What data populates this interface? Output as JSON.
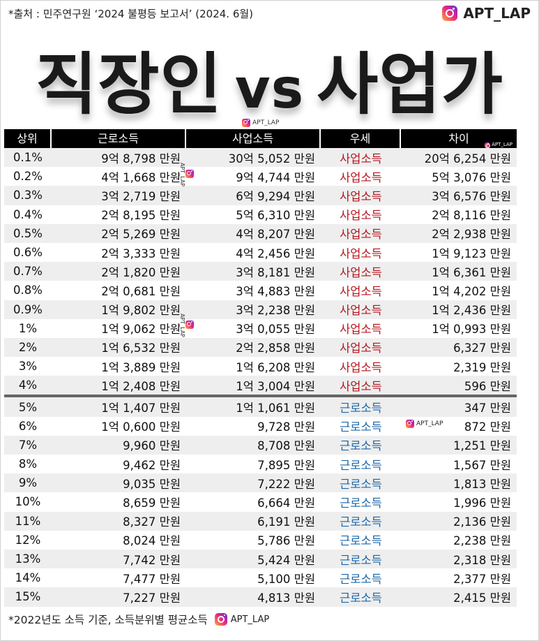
{
  "source_note": "*출처 : 민주연구원 ‘2024 불평등 보고서’ (2024. 6월)",
  "brand": "APT_LAP",
  "headline": {
    "left": "직장인",
    "vs": "vs",
    "right": "사업가"
  },
  "columns": [
    "상위",
    "근로소득",
    "사업소득",
    "우세",
    "차이"
  ],
  "rows_top": [
    {
      "rank": "0.1%",
      "wage": "9억 8,798 만원",
      "biz": "30억 5,052 만원",
      "adv": "사업소득",
      "diff": "20억 6,254 만원"
    },
    {
      "rank": "0.2%",
      "wage": "4억 1,668 만원",
      "biz": "9억 4,744 만원",
      "adv": "사업소득",
      "diff": "5억 3,076 만원"
    },
    {
      "rank": "0.3%",
      "wage": "3억 2,719 만원",
      "biz": "6억 9,294 만원",
      "adv": "사업소득",
      "diff": "3억 6,576 만원"
    },
    {
      "rank": "0.4%",
      "wage": "2억 8,195 만원",
      "biz": "5억 6,310 만원",
      "adv": "사업소득",
      "diff": "2억 8,116 만원"
    },
    {
      "rank": "0.5%",
      "wage": "2억 5,269 만원",
      "biz": "4억 8,207 만원",
      "adv": "사업소득",
      "diff": "2억 2,938 만원"
    },
    {
      "rank": "0.6%",
      "wage": "2억 3,333 만원",
      "biz": "4억 2,456 만원",
      "adv": "사업소득",
      "diff": "1억 9,123 만원"
    },
    {
      "rank": "0.7%",
      "wage": "2억 1,820 만원",
      "biz": "3억 8,181 만원",
      "adv": "사업소득",
      "diff": "1억 6,361 만원"
    },
    {
      "rank": "0.8%",
      "wage": "2억 0,681 만원",
      "biz": "3억 4,883 만원",
      "adv": "사업소득",
      "diff": "1억 4,202 만원"
    },
    {
      "rank": "0.9%",
      "wage": "1억 9,802 만원",
      "biz": "3억 2,238 만원",
      "adv": "사업소득",
      "diff": "1억 2,436 만원"
    },
    {
      "rank": "1%",
      "wage": "1억 9,062 만원",
      "biz": "3억 0,055 만원",
      "adv": "사업소득",
      "diff": "1억 0,993 만원"
    },
    {
      "rank": "2%",
      "wage": "1억 6,532 만원",
      "biz": "2억 2,858 만원",
      "adv": "사업소득",
      "diff": "6,327 만원"
    },
    {
      "rank": "3%",
      "wage": "1억 3,889 만원",
      "biz": "1억 6,208 만원",
      "adv": "사업소득",
      "diff": "2,319 만원"
    },
    {
      "rank": "4%",
      "wage": "1억 2,408 만원",
      "biz": "1억 3,004 만원",
      "adv": "사업소득",
      "diff": "596 만원"
    }
  ],
  "rows_bottom": [
    {
      "rank": "5%",
      "wage": "1억 1,407 만원",
      "biz": "1억 1,061 만원",
      "adv": "근로소득",
      "diff": "347 만원"
    },
    {
      "rank": "6%",
      "wage": "1억 0,600 만원",
      "biz": "9,728 만원",
      "adv": "근로소득",
      "diff": "872 만원"
    },
    {
      "rank": "7%",
      "wage": "9,960 만원",
      "biz": "8,708 만원",
      "adv": "근로소득",
      "diff": "1,251 만원"
    },
    {
      "rank": "8%",
      "wage": "9,462 만원",
      "biz": "7,895 만원",
      "adv": "근로소득",
      "diff": "1,567 만원"
    },
    {
      "rank": "9%",
      "wage": "9,035 만원",
      "biz": "7,222 만원",
      "adv": "근로소득",
      "diff": "1,813 만원"
    },
    {
      "rank": "10%",
      "wage": "8,659 만원",
      "biz": "6,664 만원",
      "adv": "근로소득",
      "diff": "1,996 만원"
    },
    {
      "rank": "11%",
      "wage": "8,327 만원",
      "biz": "6,191 만원",
      "adv": "근로소득",
      "diff": "2,136 만원"
    },
    {
      "rank": "12%",
      "wage": "8,024 만원",
      "biz": "5,786 만원",
      "adv": "근로소득",
      "diff": "2,238 만원"
    },
    {
      "rank": "13%",
      "wage": "7,742 만원",
      "biz": "5,424 만원",
      "adv": "근로소득",
      "diff": "2,318 만원"
    },
    {
      "rank": "14%",
      "wage": "7,477 만원",
      "biz": "5,100 만원",
      "adv": "근로소득",
      "diff": "2,377 만원"
    },
    {
      "rank": "15%",
      "wage": "7,227 만원",
      "biz": "4,813 만원",
      "adv": "근로소득",
      "diff": "2,415 만원"
    }
  ],
  "footnote": "*2022년도 소득 기준, 소득분위별 평균소득",
  "colors": {
    "business": "#b4141c",
    "wage": "#1a66a8",
    "header_bg": "#000000"
  },
  "icons": {
    "brand": "instagram-icon"
  }
}
